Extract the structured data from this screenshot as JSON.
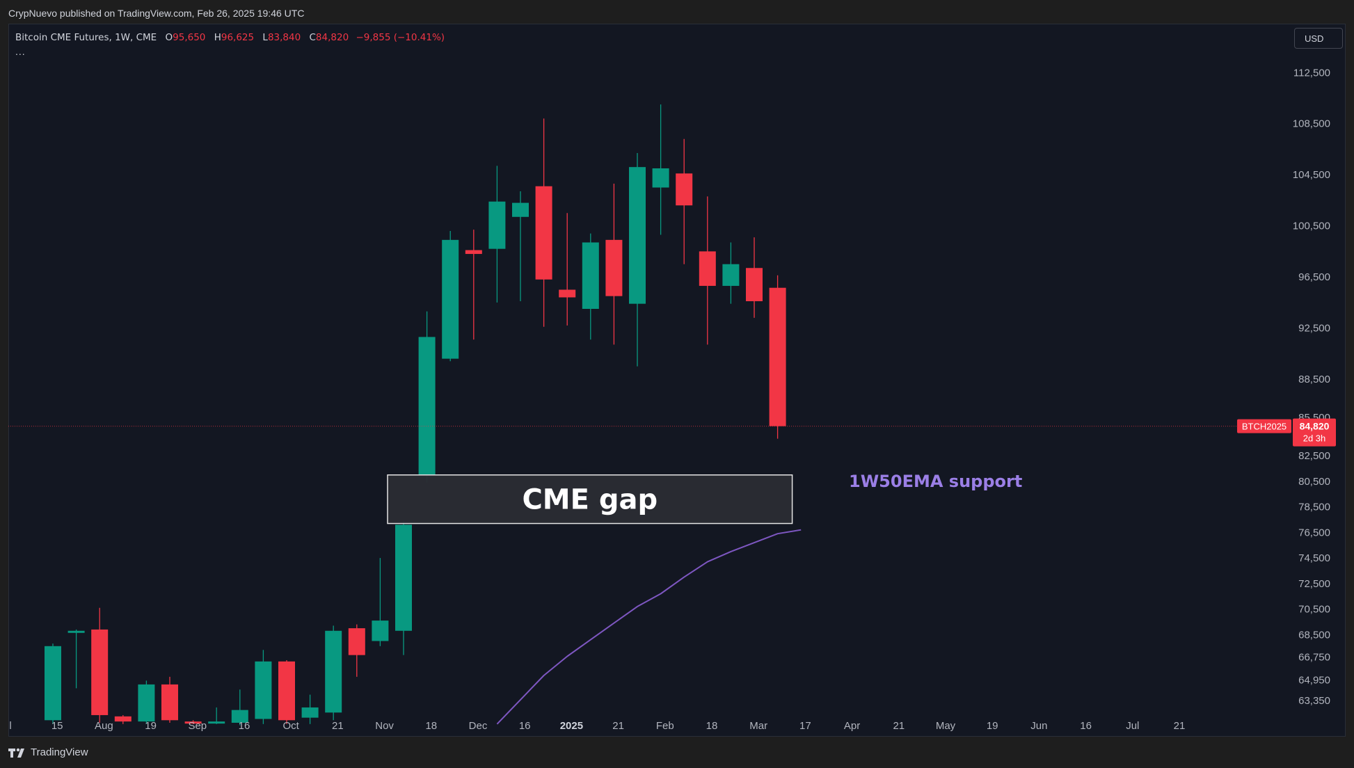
{
  "header": {
    "published_text": "CrypNuevo published on TradingView.com, Feb 26, 2025 19:46 UTC"
  },
  "legend": {
    "symbol": "Bitcoin CME Futures, 1W, CME",
    "open_label": "O",
    "open_value": "95,650",
    "high_label": "H",
    "high_value": "96,625",
    "low_label": "L",
    "low_value": "83,840",
    "close_label": "C",
    "close_value": "84,820",
    "change": "−9,855 (−10.41%)",
    "more": "..."
  },
  "currency": "USD",
  "price_tag": {
    "symbol": "BTCH2025",
    "price": "84,820",
    "countdown": "2d 3h"
  },
  "footer": {
    "brand": "TradingView"
  },
  "colors": {
    "up": "#089981",
    "down": "#f23645",
    "ema": "#7e57c2",
    "annotation_text": "#9b7fe6",
    "background": "#131722"
  },
  "chart_data": {
    "type": "candlestick",
    "timeframe": "1W",
    "ylim": [
      61000,
      116000
    ],
    "y_ticks": [
      63350,
      64950,
      66750,
      68500,
      70500,
      72500,
      74500,
      76500,
      78500,
      80500,
      82500,
      85500,
      88500,
      92500,
      96500,
      100500,
      104500,
      108500,
      112500
    ],
    "y_tick_labels": [
      "63,350",
      "64,950",
      "66,750",
      "68,500",
      "70,500",
      "72,500",
      "74,500",
      "76,500",
      "78,500",
      "80,500",
      "82,500",
      "85,500",
      "88,500",
      "92,500",
      "96,500",
      "100,500",
      "104,500",
      "108,500",
      "112,500"
    ],
    "x_ticks": [
      {
        "label": "l",
        "bold": false
      },
      {
        "label": "15",
        "bold": false
      },
      {
        "label": "Aug",
        "bold": false
      },
      {
        "label": "19",
        "bold": false
      },
      {
        "label": "Sep",
        "bold": false
      },
      {
        "label": "16",
        "bold": false
      },
      {
        "label": "Oct",
        "bold": false
      },
      {
        "label": "21",
        "bold": false
      },
      {
        "label": "Nov",
        "bold": false
      },
      {
        "label": "18",
        "bold": false
      },
      {
        "label": "Dec",
        "bold": false
      },
      {
        "label": "16",
        "bold": false
      },
      {
        "label": "2025",
        "bold": true
      },
      {
        "label": "21",
        "bold": false
      },
      {
        "label": "Feb",
        "bold": false
      },
      {
        "label": "18",
        "bold": false
      },
      {
        "label": "Mar",
        "bold": false
      },
      {
        "label": "17",
        "bold": false
      },
      {
        "label": "Apr",
        "bold": false
      },
      {
        "label": "21",
        "bold": false
      },
      {
        "label": "May",
        "bold": false
      },
      {
        "label": "19",
        "bold": false
      },
      {
        "label": "Jun",
        "bold": false
      },
      {
        "label": "16",
        "bold": false
      },
      {
        "label": "Jul",
        "bold": false
      },
      {
        "label": "21",
        "bold": false
      }
    ],
    "candles": [
      {
        "o": 61800,
        "h": 67800,
        "l": 61500,
        "c": 67600
      },
      {
        "o": 68700,
        "h": 68900,
        "l": 64300,
        "c": 68800
      },
      {
        "o": 68900,
        "h": 70600,
        "l": 61600,
        "c": 62200
      },
      {
        "o": 62100,
        "h": 62200,
        "l": 61500,
        "c": 61700
      },
      {
        "o": 61700,
        "h": 64900,
        "l": 61500,
        "c": 64600
      },
      {
        "o": 64600,
        "h": 65200,
        "l": 61600,
        "c": 61800
      },
      {
        "o": 61700,
        "h": 61800,
        "l": 61500,
        "c": 61600
      },
      {
        "o": 61700,
        "h": 62800,
        "l": 61500,
        "c": 61700
      },
      {
        "o": 61600,
        "h": 64200,
        "l": 61400,
        "c": 62600
      },
      {
        "o": 61900,
        "h": 67300,
        "l": 61500,
        "c": 66400
      },
      {
        "o": 66400,
        "h": 66500,
        "l": 61500,
        "c": 61800
      },
      {
        "o": 62000,
        "h": 63800,
        "l": 61500,
        "c": 62800
      },
      {
        "o": 62400,
        "h": 69200,
        "l": 61800,
        "c": 68800
      },
      {
        "o": 69000,
        "h": 69300,
        "l": 65200,
        "c": 66900
      },
      {
        "o": 68000,
        "h": 74500,
        "l": 67600,
        "c": 69600
      },
      {
        "o": 68800,
        "h": 77400,
        "l": 66900,
        "c": 77100
      },
      {
        "o": 81000,
        "h": 93800,
        "l": 80400,
        "c": 91800
      },
      {
        "o": 90100,
        "h": 100100,
        "l": 89900,
        "c": 99400
      },
      {
        "o": 98600,
        "h": 100200,
        "l": 91600,
        "c": 98300
      },
      {
        "o": 98700,
        "h": 105200,
        "l": 94500,
        "c": 102400
      },
      {
        "o": 101200,
        "h": 103200,
        "l": 94600,
        "c": 102300
      },
      {
        "o": 103600,
        "h": 108900,
        "l": 92600,
        "c": 96300
      },
      {
        "o": 95500,
        "h": 101500,
        "l": 92700,
        "c": 94900
      },
      {
        "o": 94000,
        "h": 99900,
        "l": 91600,
        "c": 99200
      },
      {
        "o": 99400,
        "h": 103800,
        "l": 91200,
        "c": 95000
      },
      {
        "o": 94400,
        "h": 106200,
        "l": 89500,
        "c": 105100
      },
      {
        "o": 103500,
        "h": 110000,
        "l": 99800,
        "c": 105000
      },
      {
        "o": 104600,
        "h": 107300,
        "l": 97500,
        "c": 102100
      },
      {
        "o": 98500,
        "h": 102800,
        "l": 91200,
        "c": 95800
      },
      {
        "o": 95800,
        "h": 99200,
        "l": 94400,
        "c": 97500
      },
      {
        "o": 97200,
        "h": 99600,
        "l": 93300,
        "c": 94600
      },
      {
        "o": 95650,
        "h": 96625,
        "l": 83840,
        "c": 84820
      }
    ],
    "ema": {
      "name": "1W50EMA",
      "start_index": 19,
      "values": [
        61500,
        63400,
        65300,
        66800,
        68100,
        69400,
        70700,
        71700,
        73000,
        74200,
        75000,
        75700,
        76400,
        76700
      ]
    },
    "current_price": 84820,
    "annotations": [
      {
        "type": "box",
        "text": "CME gap",
        "top": 81000,
        "bottom": 77200
      },
      {
        "type": "text",
        "text": "1W50EMA support"
      }
    ]
  }
}
